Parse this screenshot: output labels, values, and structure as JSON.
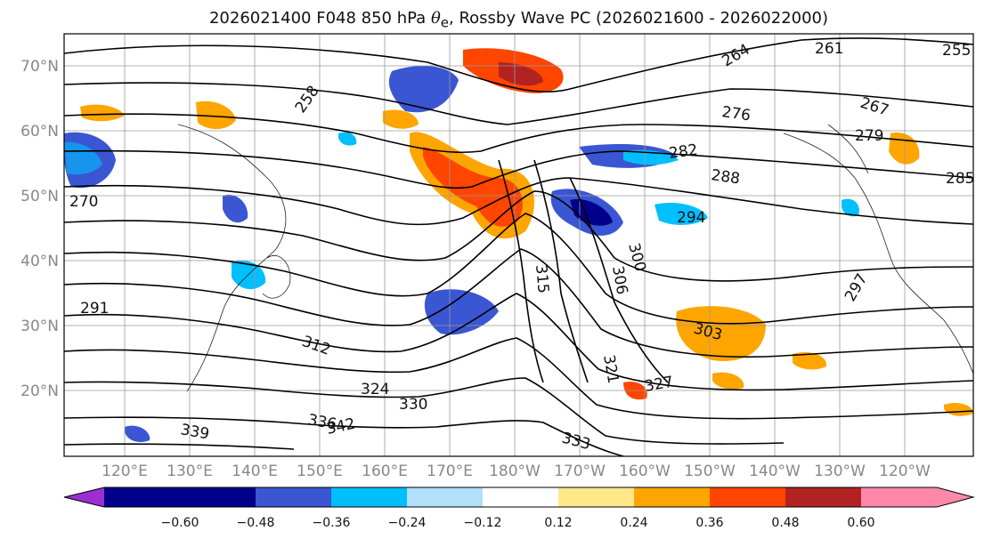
{
  "title": {
    "prefix": "2026021400 F048 850 hPa ",
    "symbol": "θ",
    "subscript": "e",
    "suffix": ", Rossby Wave PC (2026021600 - 2026022000)"
  },
  "latitude_labels": [
    "70°N",
    "60°N",
    "50°N",
    "40°N",
    "30°N",
    "20°N"
  ],
  "longitude_labels": [
    "120°E",
    "130°E",
    "140°E",
    "150°E",
    "160°E",
    "170°E",
    "180°W",
    "170°W",
    "160°W",
    "150°W",
    "140°W",
    "130°W",
    "120°W"
  ],
  "contour_labels": [
    "255",
    "258",
    "261",
    "264",
    "267",
    "270",
    "276",
    "279",
    "282",
    "285",
    "288",
    "291",
    "294",
    "297",
    "300",
    "303",
    "306",
    "312",
    "315",
    "321",
    "324",
    "327",
    "330",
    "333",
    "336",
    "339",
    "342"
  ],
  "colorbar": {
    "ticks": [
      "−0.60",
      "−0.48",
      "−0.36",
      "−0.24",
      "−0.12",
      "0.12",
      "0.24",
      "0.36",
      "0.48",
      "0.60"
    ],
    "colors": [
      "#9b30d0",
      "#00008b",
      "#3a56d2",
      "#00bfff",
      "#b0e0fa",
      "#ffffff",
      "#ffe88a",
      "#ffa500",
      "#ff4500",
      "#b22222",
      "#ff88aa"
    ]
  },
  "colors": {
    "negative_shading": "#3a56d2",
    "positive_shading": "#ff4500"
  }
}
